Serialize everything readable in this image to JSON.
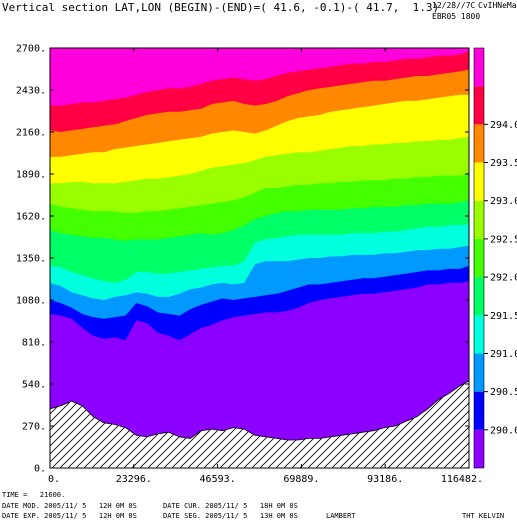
{
  "header": {
    "title": "Vertical section LAT,LON (BEGIN)-(END)=( 41.6, -0.1)-( 41.7,  1.3)",
    "date_stamp": "12/28//7C",
    "run_label": "EBR05 1800",
    "model_name": "CvIHNeMas"
  },
  "footer": {
    "time_line": "TIME =   21600.",
    "date_mod": "DATE MOD. 2005/11/ 5   12H 0M 0S",
    "date_cur": "DATE CUR. 2005/11/ 5   18H 0M 0S",
    "date_exp": "DATE EXP. 2005/11/ 5   12H 0M 0S",
    "date_seg": "DATE SEG. 2005/11/ 5   13H 0M 0S",
    "projection": "LAMBERT",
    "field_label": "THT KELVIN"
  },
  "chart_data": {
    "type": "heatmap",
    "subtype": "filled-contour vertical cross-section",
    "field": "THT",
    "units": "KELVIN",
    "xlim": [
      0,
      116482
    ],
    "ylim": [
      0,
      2700
    ],
    "x_ticks": [
      "0.",
      "23296.",
      "46593.",
      "69889.",
      "93186.",
      "116482."
    ],
    "y_ticks": [
      "0.",
      "270.",
      "540.",
      "810.",
      "1080.",
      "1350.",
      "1620.",
      "1890.",
      "2160.",
      "2430.",
      "2700."
    ],
    "colorbar": {
      "levels": [
        290.0,
        290.5,
        291.0,
        291.5,
        292.0,
        292.5,
        293.0,
        293.5,
        294.0
      ],
      "labels": [
        "290.0",
        "290.5",
        "291.0",
        "291.5",
        "292.0",
        "292.5",
        "293.0",
        "293.5",
        "294.0"
      ],
      "colors": [
        "#8b00ff",
        "#0000ff",
        "#0099ff",
        "#00ffdd",
        "#00ff66",
        "#44ff00",
        "#99ff00",
        "#ffff00",
        "#ff8800",
        "#ff0044",
        "#ff00dd"
      ]
    },
    "x_profile": [
      0,
      3000,
      6000,
      9000,
      12000,
      15000,
      18000,
      21000,
      24000,
      27000,
      30000,
      33000,
      36000,
      39000,
      42000,
      45000,
      48000,
      51000,
      54000,
      57000,
      60000,
      63000,
      66000,
      69000,
      72000,
      75000,
      78000,
      81000,
      84000,
      87000,
      90000,
      93000,
      96000,
      99000,
      102000,
      105000,
      108000,
      111000,
      114000,
      116482
    ],
    "terrain": [
      380,
      400,
      430,
      400,
      330,
      290,
      280,
      260,
      210,
      200,
      220,
      230,
      200,
      190,
      240,
      250,
      240,
      260,
      250,
      210,
      200,
      190,
      180,
      180,
      190,
      190,
      200,
      210,
      220,
      230,
      240,
      260,
      270,
      300,
      330,
      380,
      440,
      480,
      530,
      560
    ],
    "contours_m": [
      {
        "theta": 290.0,
        "z": [
          990,
          980,
          960,
          900,
          850,
          830,
          840,
          820,
          950,
          930,
          870,
          850,
          820,
          860,
          900,
          920,
          950,
          970,
          980,
          990,
          1000,
          1000,
          1010,
          1030,
          1060,
          1080,
          1090,
          1100,
          1110,
          1120,
          1120,
          1130,
          1140,
          1150,
          1160,
          1180,
          1180,
          1190,
          1190,
          1200
        ]
      },
      {
        "theta": 290.5,
        "z": [
          1080,
          1060,
          1030,
          990,
          970,
          960,
          970,
          980,
          1060,
          1040,
          1000,
          990,
          980,
          1020,
          1050,
          1070,
          1090,
          1080,
          1090,
          1100,
          1110,
          1120,
          1140,
          1160,
          1180,
          1180,
          1190,
          1200,
          1210,
          1220,
          1220,
          1230,
          1240,
          1250,
          1260,
          1270,
          1270,
          1280,
          1280,
          1300
        ]
      },
      {
        "theta": 291.0,
        "z": [
          1190,
          1170,
          1130,
          1110,
          1090,
          1080,
          1100,
          1110,
          1130,
          1120,
          1100,
          1100,
          1120,
          1150,
          1160,
          1180,
          1190,
          1180,
          1190,
          1310,
          1330,
          1330,
          1330,
          1340,
          1350,
          1350,
          1360,
          1360,
          1370,
          1370,
          1370,
          1380,
          1380,
          1390,
          1400,
          1400,
          1410,
          1410,
          1420,
          1430
        ]
      },
      {
        "theta": 291.5,
        "z": [
          1300,
          1290,
          1260,
          1240,
          1220,
          1200,
          1190,
          1210,
          1260,
          1260,
          1250,
          1250,
          1260,
          1270,
          1280,
          1290,
          1300,
          1300,
          1330,
          1450,
          1470,
          1480,
          1490,
          1500,
          1500,
          1500,
          1500,
          1500,
          1510,
          1510,
          1510,
          1520,
          1520,
          1530,
          1540,
          1550,
          1550,
          1560,
          1560,
          1570
        ]
      },
      {
        "theta": 292.0,
        "z": [
          1530,
          1510,
          1500,
          1490,
          1480,
          1480,
          1470,
          1460,
          1470,
          1470,
          1470,
          1480,
          1490,
          1500,
          1510,
          1500,
          1510,
          1530,
          1560,
          1600,
          1620,
          1640,
          1650,
          1650,
          1660,
          1660,
          1660,
          1660,
          1670,
          1670,
          1680,
          1680,
          1680,
          1690,
          1690,
          1700,
          1700,
          1700,
          1710,
          1720
        ]
      },
      {
        "theta": 292.5,
        "z": [
          1700,
          1680,
          1670,
          1660,
          1650,
          1650,
          1650,
          1640,
          1640,
          1650,
          1650,
          1660,
          1670,
          1680,
          1690,
          1700,
          1710,
          1720,
          1740,
          1770,
          1800,
          1800,
          1810,
          1820,
          1820,
          1830,
          1830,
          1840,
          1840,
          1850,
          1850,
          1850,
          1860,
          1860,
          1870,
          1870,
          1880,
          1880,
          1880,
          1890
        ]
      },
      {
        "theta": 293.0,
        "z": [
          1830,
          1830,
          1840,
          1840,
          1830,
          1830,
          1830,
          1840,
          1850,
          1860,
          1860,
          1870,
          1880,
          1890,
          1910,
          1930,
          1940,
          1950,
          1960,
          1980,
          2000,
          2010,
          2020,
          2030,
          2030,
          2040,
          2050,
          2060,
          2070,
          2070,
          2080,
          2080,
          2090,
          2090,
          2100,
          2100,
          2110,
          2110,
          2120,
          2130
        ]
      },
      {
        "theta": 293.5,
        "z": [
          2000,
          2000,
          2010,
          2020,
          2030,
          2030,
          2050,
          2060,
          2070,
          2080,
          2090,
          2100,
          2110,
          2120,
          2130,
          2150,
          2160,
          2170,
          2160,
          2150,
          2170,
          2200,
          2230,
          2250,
          2260,
          2270,
          2290,
          2300,
          2310,
          2320,
          2330,
          2340,
          2350,
          2360,
          2360,
          2370,
          2380,
          2390,
          2400,
          2400
        ]
      },
      {
        "theta": 294.0,
        "z": [
          2170,
          2160,
          2170,
          2180,
          2190,
          2200,
          2210,
          2230,
          2250,
          2270,
          2280,
          2290,
          2290,
          2300,
          2310,
          2340,
          2350,
          2360,
          2340,
          2330,
          2340,
          2360,
          2390,
          2410,
          2430,
          2440,
          2450,
          2460,
          2470,
          2480,
          2490,
          2490,
          2500,
          2510,
          2520,
          2520,
          2530,
          2540,
          2550,
          2560
        ]
      },
      {
        "theta": 294.5,
        "z": [
          2330,
          2330,
          2340,
          2350,
          2350,
          2360,
          2370,
          2380,
          2400,
          2420,
          2430,
          2440,
          2440,
          2450,
          2470,
          2490,
          2500,
          2510,
          2500,
          2490,
          2500,
          2520,
          2540,
          2550,
          2560,
          2570,
          2580,
          2590,
          2600,
          2600,
          2610,
          2610,
          2620,
          2630,
          2630,
          2640,
          2650,
          2650,
          2660,
          2680
        ]
      }
    ]
  }
}
